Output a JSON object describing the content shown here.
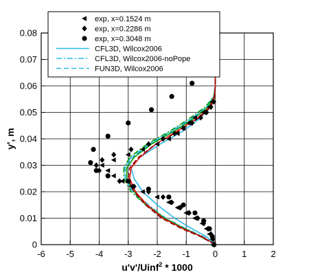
{
  "chart_data": {
    "type": "scatter",
    "title": "",
    "xlabel": "u'v'/Uinf² * 1000",
    "xlabel_base": "u'v'/Uinf",
    "xlabel_sup": "2",
    "xlabel_tail": " * 1000",
    "ylabel": "y', m",
    "xlim": [
      -6,
      2
    ],
    "ylim": [
      0,
      0.08
    ],
    "grid": true,
    "legend_position": "top-left",
    "x_ticks": [
      -6,
      -5,
      -4,
      -3,
      -2,
      -1,
      0,
      1,
      2
    ],
    "x_tick_labels": [
      "-6",
      "-5",
      "-4",
      "-3",
      "-2",
      "-1",
      "0",
      "1",
      "2"
    ],
    "y_ticks": [
      0,
      0.01,
      0.02,
      0.03,
      0.04,
      0.05,
      0.06,
      0.07,
      0.08
    ],
    "y_tick_labels": [
      "0",
      "0.01",
      "0.02",
      "0.03",
      "0.04",
      "0.05",
      "0.06",
      "0.07",
      "0.08"
    ],
    "series": [
      {
        "name": "exp, x=0.1524 m",
        "kind": "marker",
        "marker": "triangle-left",
        "color": "#000000",
        "x": [
          -0.05,
          -0.1,
          -0.2,
          -0.3,
          -0.45,
          -0.7,
          -1.0,
          -1.3,
          -1.6,
          -2.0,
          -2.5,
          -2.9,
          -3.2,
          -3.5,
          -3.7,
          -3.9,
          -3.5,
          -3.0,
          -2.5,
          -2.0,
          -1.6,
          -1.3,
          -1.1,
          -0.9,
          -0.7,
          -0.4,
          -0.2,
          -0.1
        ],
        "y": [
          0.0,
          0.002,
          0.004,
          0.006,
          0.008,
          0.01,
          0.012,
          0.014,
          0.016,
          0.018,
          0.02,
          0.022,
          0.024,
          0.026,
          0.028,
          0.03,
          0.032,
          0.034,
          0.036,
          0.038,
          0.04,
          0.042,
          0.044,
          0.046,
          0.048,
          0.05,
          0.052,
          0.054
        ]
      },
      {
        "name": "exp, x=0.2286 m",
        "kind": "marker",
        "marker": "diamond",
        "color": "#000000",
        "x": [
          -0.03,
          -0.08,
          -0.15,
          -0.25,
          -0.4,
          -0.6,
          -0.9,
          -1.2,
          -1.5,
          -1.8,
          -2.3,
          -2.8,
          -3.3,
          -3.7,
          -4.0,
          -4.1,
          -3.9,
          -3.5,
          -2.9,
          -2.3,
          -1.8,
          -1.4,
          -1.1,
          -0.8,
          -0.5,
          -0.3,
          -0.15,
          -0.05
        ],
        "y": [
          0.0,
          0.002,
          0.004,
          0.006,
          0.008,
          0.01,
          0.012,
          0.014,
          0.016,
          0.018,
          0.02,
          0.022,
          0.024,
          0.026,
          0.028,
          0.03,
          0.032,
          0.034,
          0.036,
          0.038,
          0.04,
          0.042,
          0.044,
          0.046,
          0.048,
          0.05,
          0.052,
          0.054
        ]
      },
      {
        "name": "exp, x=0.3048 m",
        "kind": "marker",
        "marker": "circle",
        "color": "#000000",
        "x": [
          -0.05,
          -0.1,
          -0.2,
          -0.4,
          -0.7,
          -1.1,
          -1.6,
          -2.3,
          -3.0,
          -3.7,
          -4.1,
          -4.3,
          -4.2,
          -3.7,
          -3.0,
          -2.2,
          -1.5,
          -0.8,
          -0.35,
          -0.1
        ],
        "y": [
          0.0,
          0.003,
          0.006,
          0.009,
          0.012,
          0.015,
          0.018,
          0.021,
          0.024,
          0.026,
          0.028,
          0.031,
          0.036,
          0.041,
          0.046,
          0.051,
          0.056,
          0.061,
          0.066,
          0.0715
        ]
      },
      {
        "name": "CFL3D, Wilcox2006",
        "kind": "line",
        "dash": "solid",
        "color": "#2ab8e6",
        "x": [
          0,
          -0.3,
          -0.8,
          -1.4,
          -2.0,
          -2.5,
          -2.8,
          -2.9,
          -2.6,
          -1.9,
          -1.1,
          -0.5,
          -0.2,
          -0.05,
          0,
          0
        ],
        "y": [
          0,
          0.003,
          0.006,
          0.01,
          0.015,
          0.02,
          0.025,
          0.029,
          0.033,
          0.038,
          0.043,
          0.048,
          0.052,
          0.056,
          0.06,
          0.075
        ]
      },
      {
        "name": "CFL3D, Wilcox2006-noPope",
        "kind": "line",
        "dash": "dashdot",
        "color": "#2ab8e6",
        "x": [
          0,
          -0.4,
          -1.0,
          -1.7,
          -2.3,
          -2.8,
          -3.1,
          -3.15,
          -2.9,
          -2.3,
          -1.5,
          -0.8,
          -0.3,
          -0.05,
          0,
          0
        ],
        "y": [
          0,
          0.003,
          0.006,
          0.01,
          0.015,
          0.02,
          0.025,
          0.029,
          0.033,
          0.038,
          0.043,
          0.048,
          0.052,
          0.056,
          0.06,
          0.075
        ]
      },
      {
        "name": "FUN3D, Wilcox2006",
        "kind": "line",
        "dash": "dashed",
        "color": "#2ab8e6",
        "x": [
          0,
          -0.5,
          -1.1,
          -1.8,
          -2.4,
          -2.85,
          -3.1,
          -3.1,
          -2.85,
          -2.25,
          -1.45,
          -0.75,
          -0.3,
          -0.05,
          0,
          0
        ],
        "y": [
          0,
          0.003,
          0.006,
          0.01,
          0.015,
          0.02,
          0.025,
          0.029,
          0.033,
          0.038,
          0.043,
          0.048,
          0.052,
          0.056,
          0.06,
          0.075
        ]
      },
      {
        "kind": "line",
        "dash": "solid",
        "color": "#009900",
        "x": [
          0,
          -0.45,
          -1.05,
          -1.75,
          -2.35,
          -2.8,
          -3.05,
          -3.05,
          -2.8,
          -2.2,
          -1.4,
          -0.7,
          -0.25,
          -0.03,
          0,
          0
        ],
        "y": [
          0,
          0.003,
          0.006,
          0.01,
          0.015,
          0.02,
          0.025,
          0.029,
          0.033,
          0.038,
          0.043,
          0.048,
          0.052,
          0.056,
          0.06,
          0.075
        ]
      },
      {
        "kind": "line",
        "dash": "dashdot",
        "color": "#009900",
        "x": [
          0,
          -0.5,
          -1.1,
          -1.8,
          -2.4,
          -2.9,
          -3.15,
          -3.15,
          -2.95,
          -2.35,
          -1.55,
          -0.85,
          -0.35,
          -0.05,
          0,
          0
        ],
        "y": [
          0,
          0.003,
          0.006,
          0.01,
          0.015,
          0.02,
          0.025,
          0.029,
          0.033,
          0.038,
          0.043,
          0.048,
          0.052,
          0.056,
          0.06,
          0.075
        ]
      },
      {
        "kind": "line",
        "dash": "solid",
        "color": "#dd1111",
        "x": [
          0,
          -0.45,
          -1.1,
          -1.8,
          -2.35,
          -2.75,
          -2.95,
          -2.9,
          -2.6,
          -2.05,
          -1.3,
          -0.6,
          -0.2,
          -0.03,
          0,
          0
        ],
        "y": [
          0,
          0.003,
          0.006,
          0.01,
          0.015,
          0.02,
          0.025,
          0.029,
          0.033,
          0.038,
          0.043,
          0.048,
          0.052,
          0.056,
          0.06,
          0.075
        ]
      },
      {
        "kind": "line",
        "dash": "dashed",
        "color": "#990000",
        "x": [
          0,
          -0.5,
          -1.15,
          -1.85,
          -2.4,
          -2.8,
          -3.0,
          -2.95,
          -2.65,
          -2.05,
          -1.25,
          -0.55,
          -0.15,
          -0.02,
          0,
          0
        ],
        "y": [
          0,
          0.003,
          0.006,
          0.01,
          0.015,
          0.02,
          0.025,
          0.029,
          0.033,
          0.038,
          0.043,
          0.048,
          0.052,
          0.056,
          0.06,
          0.075
        ]
      }
    ]
  }
}
